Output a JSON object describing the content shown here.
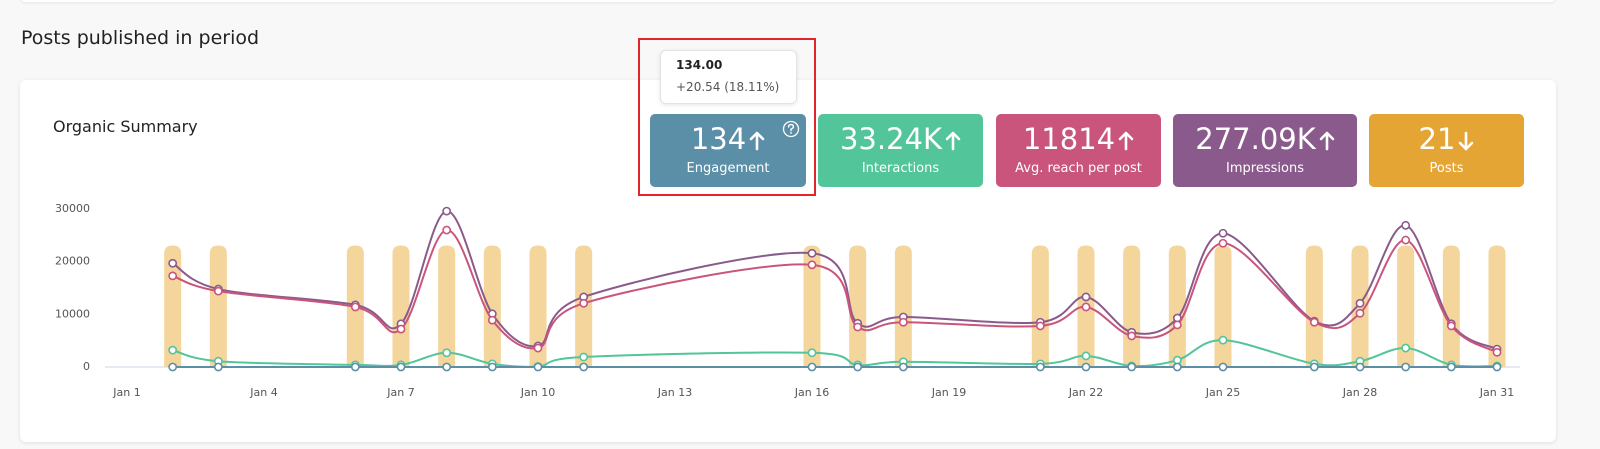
{
  "header": {
    "title": "Posts published in period"
  },
  "card": {
    "title": "Organic Summary"
  },
  "tooltip": {
    "value": "134.00",
    "change": "+20.54 (18.11%)"
  },
  "kpis": [
    {
      "value": "134",
      "label": "Engagement",
      "trend": "up",
      "color": "#5b8fa8",
      "help_icon": true
    },
    {
      "value": "33.24K",
      "label": "Interactions",
      "trend": "up",
      "color": "#52c59b"
    },
    {
      "value": "11814",
      "label": "Avg. reach per post",
      "trend": "up",
      "color": "#c9557d"
    },
    {
      "value": "277.09K",
      "label": "Impressions",
      "trend": "up",
      "color": "#8b5a8c"
    },
    {
      "value": "21",
      "label": "Posts",
      "trend": "down",
      "color": "#e5a535"
    }
  ],
  "chart_data": {
    "type": "line",
    "x": [
      2,
      3,
      6,
      7,
      8,
      9,
      10,
      11,
      16,
      17,
      18,
      21,
      22,
      23,
      24,
      25,
      27,
      28,
      29,
      30,
      31
    ],
    "xlim": [
      1,
      31
    ],
    "xticks": [
      {
        "value": 1,
        "label": "Jan 1"
      },
      {
        "value": 4,
        "label": "Jan 4"
      },
      {
        "value": 7,
        "label": "Jan 7"
      },
      {
        "value": 10,
        "label": "Jan 10"
      },
      {
        "value": 13,
        "label": "Jan 13"
      },
      {
        "value": 16,
        "label": "Jan 16"
      },
      {
        "value": 19,
        "label": "Jan 19"
      },
      {
        "value": 22,
        "label": "Jan 22"
      },
      {
        "value": 25,
        "label": "Jan 25"
      },
      {
        "value": 28,
        "label": "Jan 28"
      },
      {
        "value": 31,
        "label": "Jan 31"
      }
    ],
    "ylim": [
      0,
      30000
    ],
    "yticks": [
      0,
      10000,
      20000,
      30000
    ],
    "y2lim": [
      0,
      1.3
    ],
    "series": [
      {
        "type": "bar",
        "axis": "y2",
        "color": "#f3d396",
        "values": [
          1,
          1,
          1,
          1,
          1,
          1,
          1,
          1,
          1,
          1,
          1,
          1,
          1,
          1,
          1,
          1,
          1,
          1,
          1,
          1,
          1
        ]
      },
      {
        "color": "#8b5a8c",
        "values": [
          19700,
          14800,
          11800,
          8200,
          29600,
          10100,
          4000,
          13300,
          21600,
          8300,
          9500,
          8500,
          13300,
          6600,
          9300,
          25400,
          8700,
          12100,
          26900,
          8200,
          3400
        ]
      },
      {
        "color": "#c9557d",
        "values": [
          17300,
          14400,
          11400,
          7200,
          26000,
          8900,
          3600,
          12100,
          19400,
          7600,
          8500,
          7800,
          11400,
          5900,
          8000,
          23500,
          8500,
          10200,
          24100,
          7800,
          2800
        ]
      },
      {
        "color": "#52c59b",
        "values": [
          3200,
          1100,
          400,
          400,
          2700,
          600,
          100,
          1900,
          2700,
          400,
          1000,
          600,
          2100,
          200,
          1300,
          5100,
          600,
          1100,
          3600,
          400,
          200
        ]
      },
      {
        "color": "#5b8fa8",
        "values": [
          6,
          6,
          6,
          6,
          6,
          6,
          6,
          6,
          6,
          6,
          6,
          6,
          6,
          6,
          6,
          6,
          6,
          6,
          6,
          6,
          6
        ]
      }
    ]
  }
}
